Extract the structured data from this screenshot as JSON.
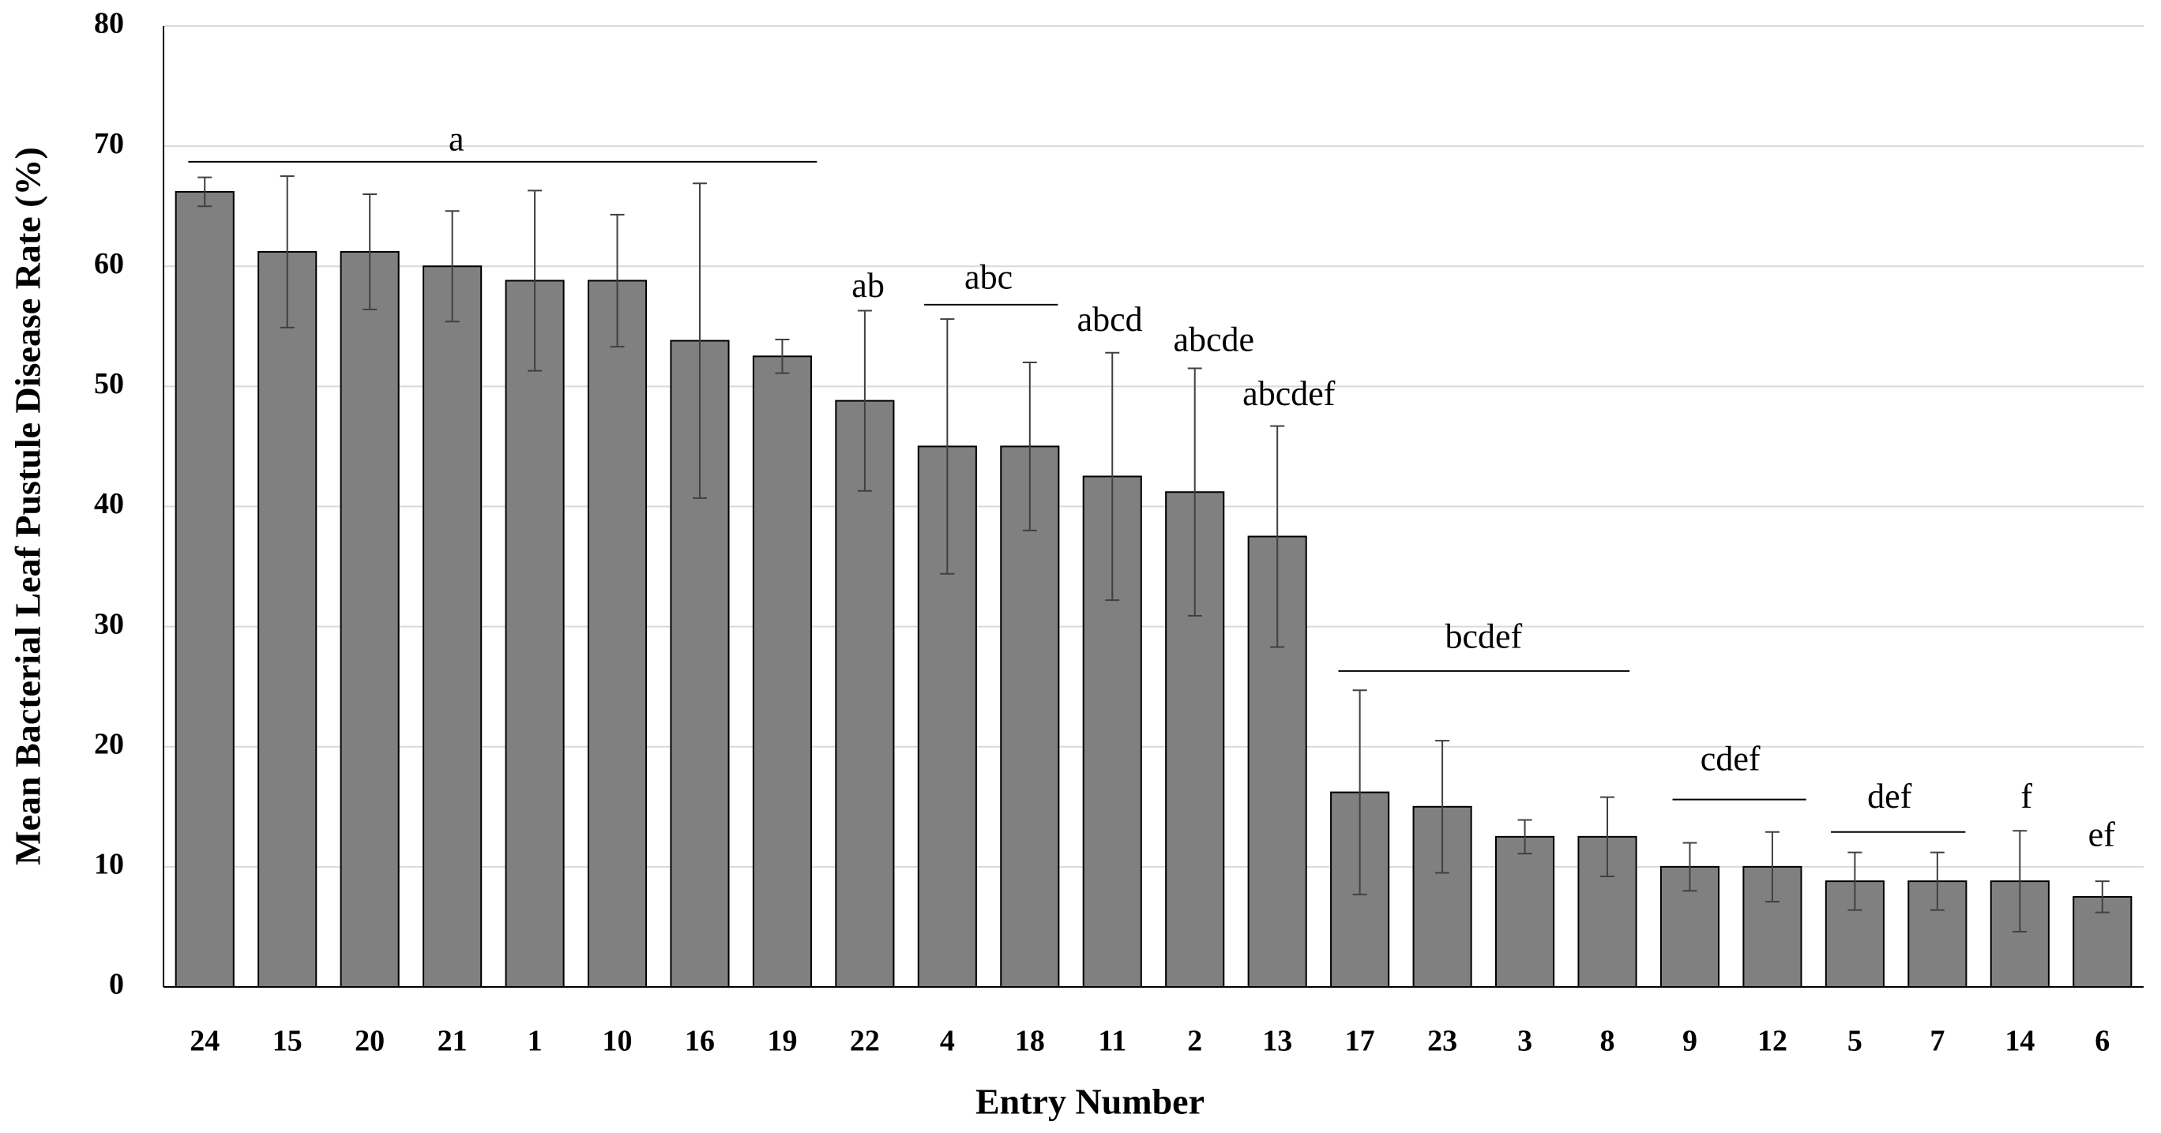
{
  "chart_data": {
    "type": "bar",
    "xlabel": "Entry Number",
    "ylabel": "Mean Bacterial Leaf Pustule Disease Rate (%)",
    "categories": [
      "24",
      "15",
      "20",
      "21",
      "1",
      "10",
      "16",
      "19",
      "22",
      "4",
      "18",
      "11",
      "2",
      "13",
      "17",
      "23",
      "3",
      "8",
      "9",
      "12",
      "5",
      "7",
      "14",
      "6"
    ],
    "values": [
      66.2,
      61.2,
      61.2,
      60,
      58.8,
      58.8,
      53.8,
      52.5,
      48.8,
      45,
      45,
      42.5,
      41.2,
      37.5,
      16.2,
      15,
      12.5,
      12.5,
      10,
      10,
      8.8,
      8.8,
      8.8,
      7.5
    ],
    "errors": [
      1.2,
      6.3,
      4.8,
      4.6,
      7.5,
      5.5,
      13.1,
      1.4,
      7.5,
      10.6,
      7,
      10.3,
      10.3,
      9.2,
      8.5,
      5.5,
      1.4,
      3.3,
      2,
      2.9,
      2.4,
      2.4,
      4.2,
      1.3
    ],
    "color": "#808080",
    "ylim": [
      0,
      80
    ],
    "yticks": [
      0,
      10,
      20,
      30,
      40,
      50,
      60,
      70,
      80
    ],
    "grid": true,
    "annotations": [
      "a",
      "ab",
      "abc",
      "abcd",
      "abcde",
      "abcdef",
      "bcdef",
      "cdef",
      "def",
      "f",
      "ef"
    ]
  }
}
